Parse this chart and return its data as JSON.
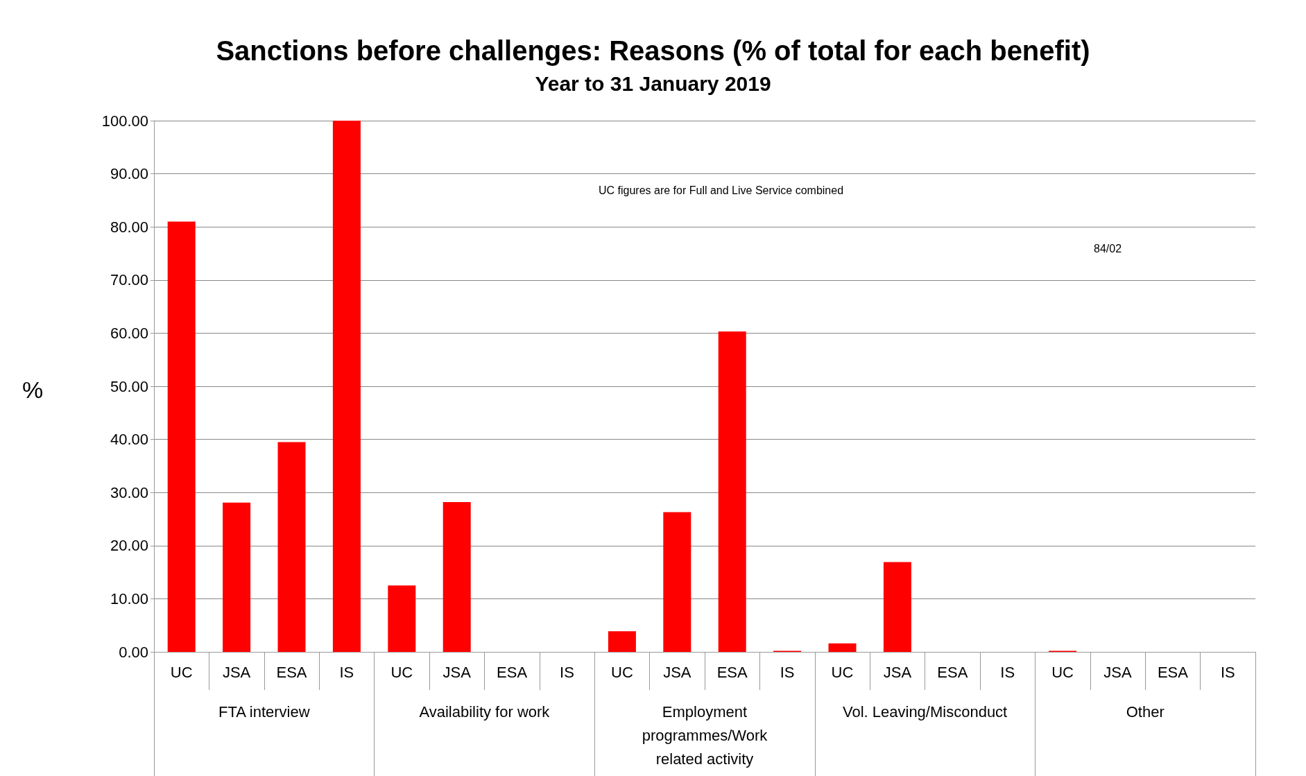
{
  "chart_data": {
    "type": "bar",
    "title": "Sanctions before challenges: Reasons (% of total for each benefit)",
    "subtitle": "Year to 31 January 2019",
    "ylabel": "%",
    "categories": [
      "UC",
      "JSA",
      "ESA",
      "IS",
      "UC",
      "JSA",
      "ESA",
      "IS",
      "UC",
      "JSA",
      "ESA",
      "IS",
      "UC",
      "JSA",
      "ESA",
      "IS",
      "UC",
      "JSA",
      "ESA",
      "IS"
    ],
    "values": [
      81.0,
      28.1,
      39.5,
      100.0,
      12.5,
      28.2,
      0,
      0,
      3.9,
      26.3,
      60.3,
      0.2,
      1.6,
      16.9,
      0,
      0,
      0.2,
      0,
      0,
      0
    ],
    "color": "#ff0000",
    "ylim": [
      0,
      100
    ],
    "yticks": [
      {
        "value": 0,
        "label": "0.00"
      },
      {
        "value": 10,
        "label": "10.00"
      },
      {
        "value": 20,
        "label": "20.00"
      },
      {
        "value": 30,
        "label": "30.00"
      },
      {
        "value": 40,
        "label": "40.00"
      },
      {
        "value": 50,
        "label": "50.00"
      },
      {
        "value": 60,
        "label": "60.00"
      },
      {
        "value": 70,
        "label": "70.00"
      },
      {
        "value": 80,
        "label": "80.00"
      },
      {
        "value": 90,
        "label": "90.00"
      },
      {
        "value": 100,
        "label": "100.00"
      }
    ],
    "grid": "y",
    "annotations": [
      "UC figures are for Full and Live Service combined",
      "84/02",
      "FTA interview",
      "Availability for work",
      "Employment\nprogrammes/Work\nrelated activity",
      "Vol. Leaving/Misconduct",
      "Other"
    ]
  }
}
